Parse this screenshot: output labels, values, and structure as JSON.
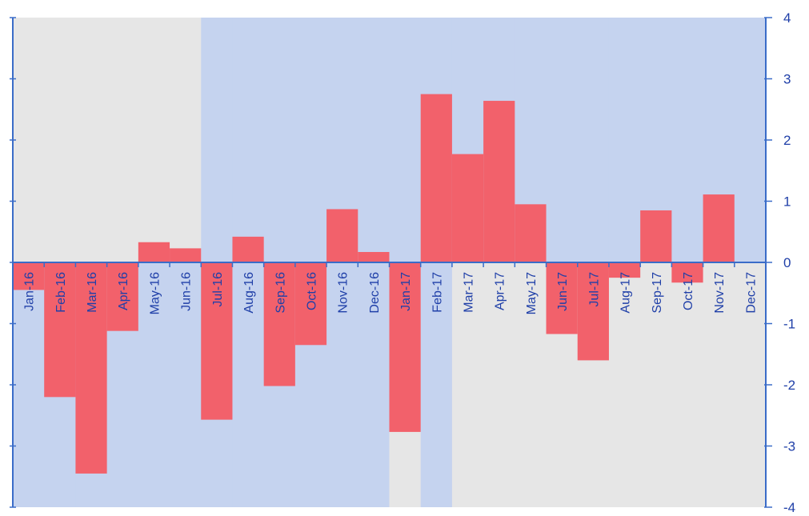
{
  "chart_data": {
    "type": "bar",
    "categories": [
      "Jan-16",
      "Feb-16",
      "Mar-16",
      "Apr-16",
      "May-16",
      "Jun-16",
      "Jul-16",
      "Aug-16",
      "Sep-16",
      "Oct-16",
      "Nov-16",
      "Dec-16",
      "Jan-17",
      "Feb-17",
      "Mar-17",
      "Apr-17",
      "May-17",
      "Jun-17",
      "Jul-17",
      "Aug-17",
      "Sep-17",
      "Oct-17",
      "Nov-17",
      "Dec-17"
    ],
    "values": [
      -0.45,
      -2.2,
      -3.45,
      -1.12,
      0.33,
      0.23,
      -2.57,
      0.42,
      -2.02,
      -1.35,
      0.87,
      0.17,
      -2.77,
      2.75,
      1.77,
      2.64,
      0.95,
      -1.17,
      -1.6,
      -0.25,
      0.85,
      -0.33,
      1.11,
      0
    ],
    "background_colors_by_category": [
      "#e6e6e6",
      "#e6e6e6",
      "#e6e6e6",
      "#e6e6e6",
      "#e6e6e6",
      "#e6e6e6",
      "#c5d3ef",
      "#c5d3ef",
      "#c5d3ef",
      "#c5d3ef",
      "#c5d3ef",
      "#c5d3ef",
      "#c5d3ef",
      "#c5d3ef",
      "#c5d3ef",
      "#c5d3ef",
      "#c5d3ef",
      "#c5d3ef",
      "#c5d3ef",
      "#c5d3ef",
      "#c5d3ef",
      "#c5d3ef",
      "#c5d3ef",
      "#c5d3ef"
    ],
    "background_colors_below_zero": [
      "#c5d3ef",
      "#c5d3ef",
      "#c5d3ef",
      "#c5d3ef",
      "#c5d3ef",
      "#c5d3ef",
      "#c5d3ef",
      "#c5d3ef",
      "#c5d3ef",
      "#c5d3ef",
      "#c5d3ef",
      "#c5d3ef",
      "#e6e6e6",
      "#c5d3ef",
      "#e6e6e6",
      "#e6e6e6",
      "#e6e6e6",
      "#e6e6e6",
      "#e6e6e6",
      "#e6e6e6",
      "#e6e6e6",
      "#e6e6e6",
      "#e6e6e6",
      "#e6e6e6"
    ],
    "bar_color": "#f2616b",
    "axis_color": "#3a6cc8",
    "ylim": [
      -4,
      4
    ],
    "yticks": [
      "4",
      "3",
      "2",
      "1",
      "0",
      "-1",
      "-2",
      "-3",
      "-4"
    ],
    "y_axis_position": "right",
    "grid": false,
    "legend": "none",
    "title": "",
    "xlabel": "",
    "ylabel": ""
  }
}
